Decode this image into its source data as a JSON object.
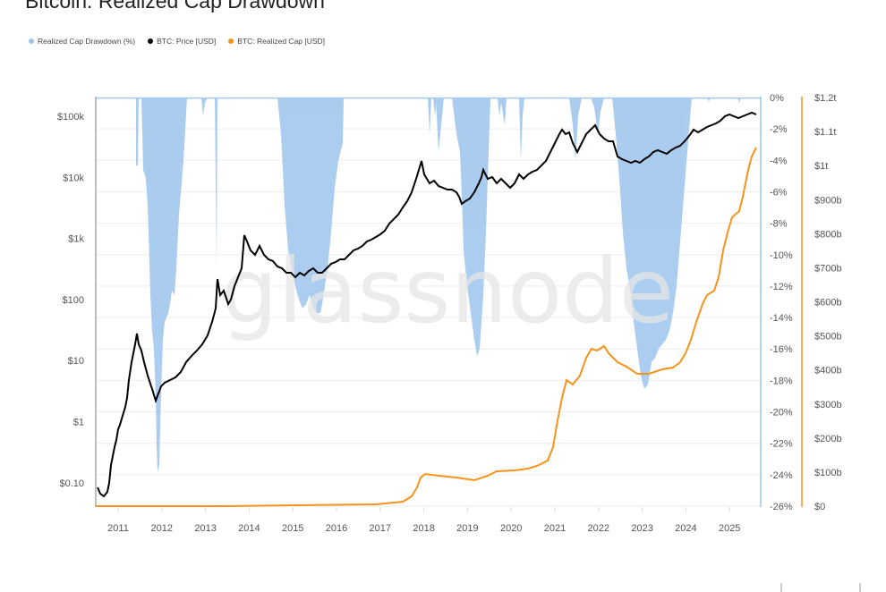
{
  "title": "Bitcoin: Realized Cap Drawdown",
  "legend": [
    {
      "label": "Realized Cap Drawdown (%)",
      "color": "#9cc4ec"
    },
    {
      "label": "BTC: Price [USD]",
      "color": "#000000"
    },
    {
      "label": "BTC: Realized Cap [USD]",
      "color": "#f7931a"
    }
  ],
  "watermark": "glassnode",
  "chart_data": {
    "type": "line",
    "title": "Bitcoin: Realized Cap Drawdown",
    "x_ticks": [
      "2011",
      "2012",
      "2013",
      "2014",
      "2015",
      "2016",
      "2017",
      "2018",
      "2019",
      "2020",
      "2021",
      "2022",
      "2023",
      "2024",
      "2025"
    ],
    "y_left": {
      "label": "BTC: Price [USD]",
      "scale": "log",
      "ticks": [
        "$0.10",
        "$1",
        "$10",
        "$100",
        "$1k",
        "$10k",
        "$100k"
      ]
    },
    "y_right1": {
      "label": "Realized Cap Drawdown (%)",
      "ticks": [
        "0%",
        "-2%",
        "-4%",
        "-6%",
        "-8%",
        "-10%",
        "-12%",
        "-14%",
        "-16%",
        "-18%",
        "-20%",
        "-22%",
        "-24%",
        "-26%"
      ],
      "range": [
        -26,
        0
      ]
    },
    "y_right2": {
      "label": "BTC: Realized Cap [USD]",
      "ticks": [
        "$1.2t",
        "$1.1t",
        "$1t",
        "$900b",
        "$800b",
        "$700b",
        "$600b",
        "$500b",
        "$400b",
        "$300b",
        "$200b",
        "$100b",
        "$0"
      ],
      "range": [
        0,
        1200
      ]
    },
    "grid": true,
    "legend_position": "top-left",
    "series": [
      {
        "name": "BTC: Price [USD]",
        "x": [
          2010.6,
          2010.8,
          2011.0,
          2011.2,
          2011.45,
          2011.6,
          2011.9,
          2012.2,
          2012.6,
          2013.0,
          2013.3,
          2013.5,
          2013.9,
          2014.3,
          2014.9,
          2015.1,
          2015.5,
          2015.9,
          2016.5,
          2017.0,
          2017.5,
          2017.96,
          2018.5,
          2018.95,
          2019.5,
          2019.95,
          2020.2,
          2020.9,
          2021.3,
          2021.55,
          2021.85,
          2022.5,
          2022.9,
          2023.5,
          2024.2,
          2024.9,
          2025.3,
          2025.7
        ],
        "values": [
          0.06,
          0.1,
          0.3,
          1,
          29,
          10,
          3,
          5,
          10,
          14,
          140,
          70,
          1000,
          500,
          300,
          200,
          260,
          430,
          650,
          1000,
          2500,
          19000,
          6500,
          3500,
          11000,
          7200,
          5000,
          20000,
          58000,
          33000,
          65000,
          20000,
          16500,
          29000,
          65000,
          95000,
          85000,
          110000
        ]
      },
      {
        "name": "BTC: Realized Cap [USD] (billions)",
        "x": [
          2010.6,
          2013.0,
          2015.0,
          2017.0,
          2017.7,
          2017.95,
          2018.5,
          2019.0,
          2019.5,
          2020.0,
          2020.8,
          2021.1,
          2021.3,
          2021.5,
          2022.0,
          2022.3,
          2022.6,
          2023.0,
          2023.5,
          2024.0,
          2024.3,
          2024.6,
          2025.0,
          2025.3,
          2025.7
        ],
        "values": [
          0,
          1,
          5,
          8,
          30,
          85,
          85,
          75,
          95,
          100,
          110,
          200,
          380,
          400,
          480,
          470,
          430,
          400,
          400,
          430,
          540,
          600,
          720,
          760,
          940
        ]
      },
      {
        "name": "Realized Cap Drawdown (%)",
        "x": [
          2011.4,
          2011.7,
          2011.9,
          2012.2,
          2012.6,
          2013.3,
          2014.7,
          2015.0,
          2015.3,
          2015.5,
          2015.9,
          2018.95,
          2019.1,
          2019.4,
          2022.4,
          2022.8,
          2022.95,
          2023.3,
          2023.9,
          2024.1
        ],
        "values": [
          -2,
          -10,
          -24,
          -14,
          0,
          -12,
          0,
          -10,
          -13,
          -15,
          0,
          0,
          -16,
          0,
          0,
          -10,
          -18,
          -15,
          -8,
          0
        ]
      }
    ]
  },
  "bottom_marks": 2
}
